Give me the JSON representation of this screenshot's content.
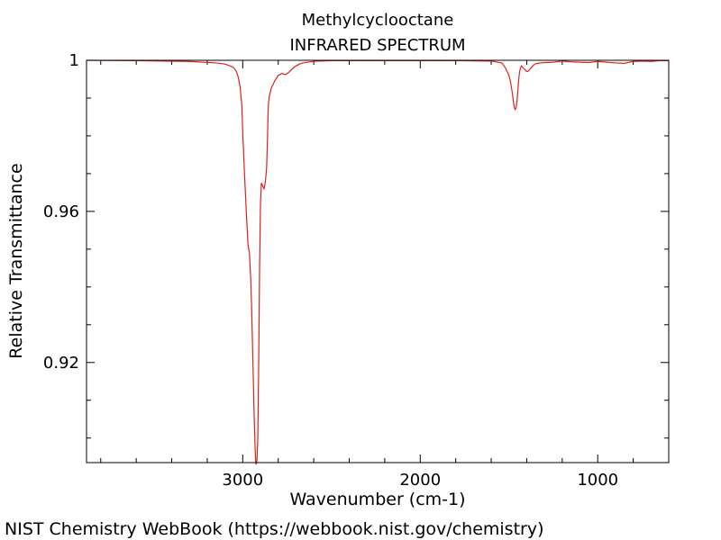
{
  "chart_data": {
    "type": "line",
    "title": "Methylcyclooctane",
    "subtitle": "INFRARED SPECTRUM",
    "xlabel": "Wavenumber (cm-1)",
    "ylabel": "Relative Transmittance",
    "xlim": [
      3880,
      600
    ],
    "ylim": [
      0.8935,
      1.0
    ],
    "x_reversed": true,
    "x_major_ticks": [
      3000,
      2000,
      1000
    ],
    "x_tick_labels": [
      "3000",
      "2000",
      "1000"
    ],
    "y_major_ticks": [
      1.0,
      0.96,
      0.92
    ],
    "y_tick_labels": [
      "1",
      "0.96",
      "0.92"
    ],
    "grid": false,
    "line_color": "#e0201b",
    "series": [
      {
        "x": [
          3880,
          3600,
          3300,
          3150,
          3100,
          3070,
          3050,
          3035,
          3025,
          3015,
          3005,
          3000,
          2990,
          2980,
          2970,
          2962,
          2955,
          2950,
          2945,
          2940,
          2935,
          2930,
          2927,
          2925,
          2920,
          2915,
          2910,
          2905,
          2900,
          2895,
          2890,
          2885,
          2880,
          2875,
          2870,
          2865,
          2860,
          2858,
          2855,
          2850,
          2845,
          2840,
          2830,
          2820,
          2800,
          2780,
          2760,
          2740,
          2720,
          2700,
          2680,
          2660,
          2620,
          2580,
          2500,
          2300,
          2000,
          1800,
          1600,
          1540,
          1520,
          1500,
          1490,
          1480,
          1475,
          1470,
          1465,
          1460,
          1455,
          1450,
          1445,
          1440,
          1435,
          1430,
          1420,
          1410,
          1400,
          1390,
          1380,
          1375,
          1370,
          1360,
          1350,
          1340,
          1320,
          1300,
          1280,
          1250,
          1200,
          1150,
          1100,
          1050,
          1000,
          950,
          900,
          850,
          800,
          750,
          700,
          650,
          600
        ],
        "y": [
          1.0,
          0.9999,
          0.9997,
          0.9993,
          0.999,
          0.9985,
          0.998,
          0.997,
          0.9955,
          0.993,
          0.988,
          0.981,
          0.97,
          0.96,
          0.951,
          0.949,
          0.942,
          0.935,
          0.925,
          0.915,
          0.905,
          0.897,
          0.894,
          0.893,
          0.894,
          0.9,
          0.92,
          0.945,
          0.962,
          0.9675,
          0.967,
          0.9665,
          0.966,
          0.967,
          0.969,
          0.972,
          0.98,
          0.985,
          0.9885,
          0.9905,
          0.9915,
          0.9925,
          0.9935,
          0.9945,
          0.996,
          0.9965,
          0.9962,
          0.9968,
          0.9978,
          0.9985,
          0.999,
          0.9993,
          0.9996,
          0.9998,
          0.9999,
          0.9999,
          0.9999,
          0.9999,
          0.9998,
          0.9993,
          0.998,
          0.996,
          0.994,
          0.991,
          0.989,
          0.9875,
          0.987,
          0.9875,
          0.989,
          0.992,
          0.995,
          0.997,
          0.998,
          0.9985,
          0.998,
          0.9975,
          0.997,
          0.9972,
          0.9978,
          0.998,
          0.9983,
          0.9988,
          0.9991,
          0.9992,
          0.9993,
          0.9994,
          0.9994,
          0.9995,
          0.9998,
          0.9996,
          0.9995,
          0.9994,
          0.9997,
          0.9995,
          0.9993,
          0.9992,
          0.9997,
          0.9998,
          0.9997,
          0.9999,
          0.9999
        ]
      }
    ]
  },
  "footer": {
    "credit": "NIST Chemistry WebBook (https://webbook.nist.gov/chemistry)"
  }
}
